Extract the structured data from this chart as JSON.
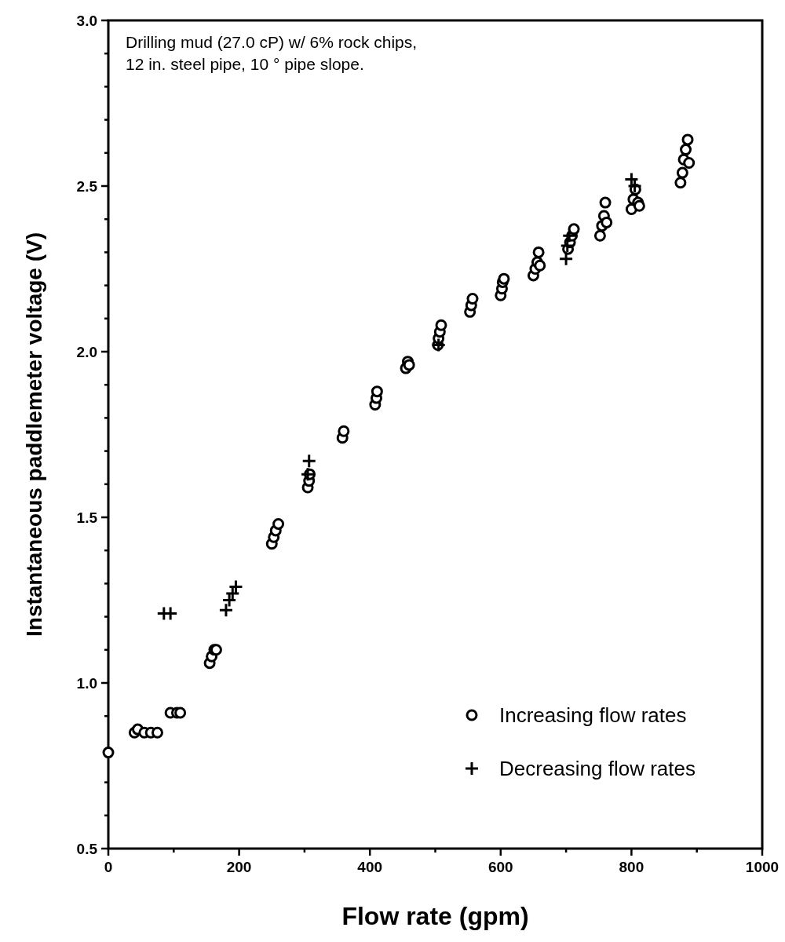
{
  "chart_data": {
    "type": "scatter",
    "xlabel": "Flow rate (gpm)",
    "ylabel": "Instantaneous paddlemeter voltage (V)",
    "annotations": [
      "Drilling mud (27.0 cP) w/ 6% rock chips,\n12 in. steel pipe, 10 ° pipe slope."
    ],
    "xlim": [
      0,
      1000
    ],
    "ylim": [
      0.5,
      3.0
    ],
    "xticks": [
      0,
      {
        "value": 100,
        "label": null
      },
      200,
      {
        "value": 300,
        "label": null
      },
      400,
      {
        "value": 500,
        "label": null
      },
      600,
      {
        "value": 700,
        "label": null
      },
      800,
      {
        "value": 900,
        "label": null
      },
      1000
    ],
    "yticks": [
      0.5,
      {
        "value": 0.6,
        "label": null
      },
      {
        "value": 0.7,
        "label": null
      },
      {
        "value": 0.8,
        "label": null
      },
      {
        "value": 0.9,
        "label": null
      },
      {
        "value": 1.0,
        "label": "1.0"
      },
      {
        "value": 1.1,
        "label": null
      },
      {
        "value": 1.2,
        "label": null
      },
      {
        "value": 1.3,
        "label": null
      },
      {
        "value": 1.4,
        "label": null
      },
      1.5,
      {
        "value": 1.6,
        "label": null
      },
      {
        "value": 1.7,
        "label": null
      },
      {
        "value": 1.8,
        "label": null
      },
      {
        "value": 1.9,
        "label": null
      },
      {
        "value": 2.0,
        "label": "2.0"
      },
      {
        "value": 2.1,
        "label": null
      },
      {
        "value": 2.2,
        "label": null
      },
      {
        "value": 2.3,
        "label": null
      },
      {
        "value": 2.4,
        "label": null
      },
      2.5,
      {
        "value": 2.6,
        "label": null
      },
      {
        "value": 2.7,
        "label": null
      },
      {
        "value": 2.8,
        "label": null
      },
      {
        "value": 2.9,
        "label": null
      },
      {
        "value": 3.0,
        "label": "3.0"
      }
    ],
    "grid": false,
    "legend": "bottom right",
    "series": [
      {
        "name": "Increasing flow rates",
        "color": "#000000",
        "marker": "circle",
        "x": [
          0,
          40,
          45,
          55,
          65,
          75,
          95,
          105,
          110,
          155,
          158,
          162,
          165,
          250,
          253,
          256,
          260,
          305,
          307,
          308,
          358,
          360,
          408,
          410,
          411,
          455,
          458,
          460,
          504,
          505,
          507,
          509,
          553,
          555,
          557,
          600,
          602,
          603,
          605,
          650,
          653,
          656,
          658,
          660,
          703,
          706,
          709,
          712,
          752,
          755,
          758,
          760,
          762,
          800,
          803,
          806,
          810,
          812,
          875,
          878,
          880,
          883,
          886,
          888
        ],
        "values": [
          0.79,
          0.85,
          0.86,
          0.85,
          0.85,
          0.85,
          0.91,
          0.91,
          0.91,
          1.06,
          1.08,
          1.1,
          1.1,
          1.42,
          1.44,
          1.46,
          1.48,
          1.59,
          1.61,
          1.63,
          1.74,
          1.76,
          1.84,
          1.86,
          1.88,
          1.95,
          1.97,
          1.96,
          2.02,
          2.04,
          2.06,
          2.08,
          2.12,
          2.14,
          2.16,
          2.17,
          2.19,
          2.21,
          2.22,
          2.23,
          2.25,
          2.27,
          2.3,
          2.26,
          2.31,
          2.33,
          2.35,
          2.37,
          2.35,
          2.38,
          2.41,
          2.45,
          2.39,
          2.43,
          2.46,
          2.49,
          2.45,
          2.44,
          2.51,
          2.54,
          2.58,
          2.61,
          2.64,
          2.57
        ]
      },
      {
        "name": "Decreasing flow rates",
        "color": "#000000",
        "marker": "cross",
        "x": [
          85,
          95,
          180,
          185,
          190,
          195,
          305,
          307,
          505,
          700,
          702,
          705,
          800,
          805
        ],
        "values": [
          1.21,
          1.21,
          1.22,
          1.25,
          1.27,
          1.29,
          1.63,
          1.67,
          2.02,
          2.28,
          2.32,
          2.35,
          2.52,
          2.5
        ]
      }
    ]
  }
}
